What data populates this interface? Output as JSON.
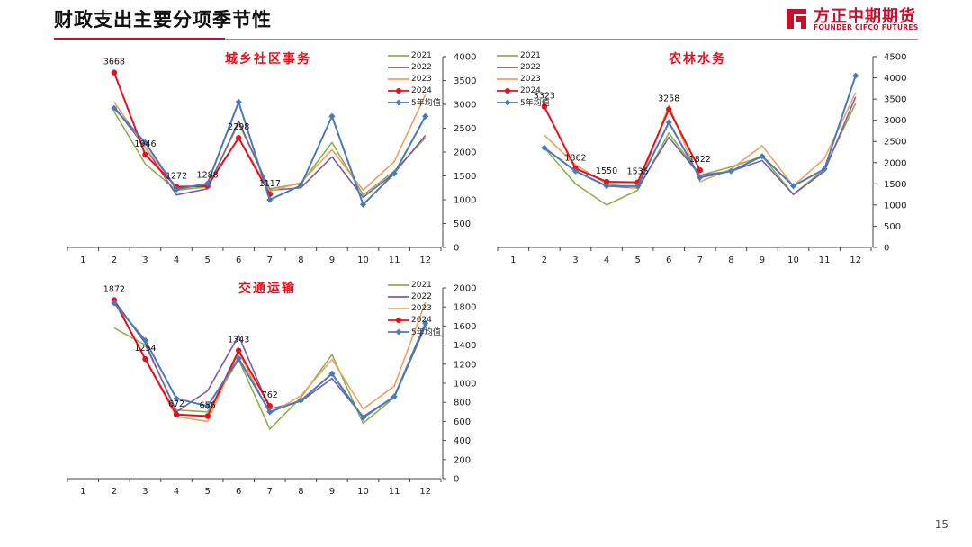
{
  "header": {
    "title": "财政支出主要分项季节性",
    "logo_cn": "方正中期期货",
    "logo_en": "FOUNDER CIFCO FUTURES",
    "accent_color": "#c8102e"
  },
  "footer": {
    "page_number": "15"
  },
  "chart_data": [
    {
      "type": "line",
      "title": "城乡社区事务",
      "categories": [
        "1",
        "2",
        "3",
        "4",
        "5",
        "6",
        "7",
        "8",
        "9",
        "10",
        "11",
        "12"
      ],
      "ylim": [
        0,
        4000
      ],
      "yticks": [
        "0",
        "500",
        "1000",
        "1500",
        "2000",
        "2500",
        "3000",
        "3500",
        "4000"
      ],
      "legend_position": "top-right",
      "series": [
        {
          "name": "2021",
          "color": "#8db04f",
          "values": [
            null,
            2850,
            1750,
            1200,
            1270,
            2600,
            1230,
            1340,
            2200,
            1100,
            1600,
            2300
          ]
        },
        {
          "name": "2022",
          "color": "#7a5ea6",
          "values": [
            null,
            2950,
            2100,
            1100,
            1230,
            2650,
            1200,
            1250,
            1900,
            1050,
            1560,
            2350
          ]
        },
        {
          "name": "2023",
          "color": "#f2a15b",
          "values": [
            null,
            3050,
            2100,
            1250,
            1310,
            2300,
            1180,
            1360,
            2050,
            1200,
            1800,
            3200
          ]
        },
        {
          "name": "2024",
          "color": "#e8101e",
          "values": [
            null,
            3668,
            1946,
            1272,
            1288,
            2298,
            1117,
            null,
            null,
            null,
            null,
            null
          ],
          "labels": [
            "3668",
            "1946",
            "1272",
            "1288",
            "2298",
            "1117"
          ]
        },
        {
          "name": "5年均值",
          "color": "#4a7ab8",
          "values": [
            null,
            2920,
            2200,
            1220,
            1340,
            3050,
            1000,
            1300,
            2750,
            900,
            1550,
            2750
          ]
        }
      ]
    },
    {
      "type": "line",
      "title": "农林水务",
      "categories": [
        "1",
        "2",
        "3",
        "4",
        "5",
        "6",
        "7",
        "8",
        "9",
        "10",
        "11",
        "12"
      ],
      "ylim": [
        0,
        4500
      ],
      "yticks": [
        "0",
        "500",
        "1000",
        "1500",
        "2000",
        "2500",
        "3000",
        "3500",
        "4000",
        "4500"
      ],
      "legend_position": "top-left",
      "series": [
        {
          "name": "2021",
          "color": "#8db04f",
          "values": [
            null,
            2350,
            1500,
            1000,
            1350,
            2700,
            1700,
            1900,
            2150,
            1250,
            1850,
            3400
          ]
        },
        {
          "name": "2022",
          "color": "#7a5ea6",
          "values": [
            null,
            2350,
            1800,
            1450,
            1400,
            2600,
            1700,
            1800,
            2050,
            1250,
            1800,
            3550
          ]
        },
        {
          "name": "2023",
          "color": "#f2a15b",
          "values": [
            null,
            2650,
            1950,
            1500,
            1400,
            3350,
            1550,
            1850,
            2400,
            1450,
            2100,
            3650
          ]
        },
        {
          "name": "2024",
          "color": "#e8101e",
          "values": [
            null,
            3323,
            1862,
            1550,
            1535,
            3258,
            1822,
            null,
            null,
            null,
            null,
            null
          ],
          "labels": [
            "3323",
            "1862",
            "1550",
            "1535",
            "3258",
            "1822"
          ]
        },
        {
          "name": "5年均值",
          "color": "#4a7ab8",
          "values": [
            null,
            2350,
            1800,
            1450,
            1450,
            2950,
            1650,
            1800,
            2150,
            1450,
            1850,
            4050
          ]
        }
      ]
    },
    {
      "type": "line",
      "title": "交通运输",
      "categories": [
        "1",
        "2",
        "3",
        "4",
        "5",
        "6",
        "7",
        "8",
        "9",
        "10",
        "11",
        "12"
      ],
      "ylim": [
        0,
        2000
      ],
      "yticks": [
        "0",
        "200",
        "400",
        "600",
        "800",
        "1000",
        "1200",
        "1400",
        "1600",
        "1800",
        "2000"
      ],
      "legend_position": "top-right",
      "series": [
        {
          "name": "2021",
          "color": "#8db04f",
          "values": [
            null,
            1580,
            1400,
            720,
            700,
            1250,
            520,
            850,
            1300,
            580,
            850,
            1600
          ]
        },
        {
          "name": "2022",
          "color": "#7a5ea6",
          "values": [
            null,
            1870,
            1420,
            700,
            920,
            1500,
            730,
            810,
            1050,
            650,
            860,
            1600
          ]
        },
        {
          "name": "2023",
          "color": "#f2a15b",
          "values": [
            null,
            1860,
            1250,
            650,
            600,
            1330,
            680,
            870,
            1250,
            730,
            970,
            1850
          ]
        },
        {
          "name": "2024",
          "color": "#e8101e",
          "values": [
            null,
            1872,
            1254,
            672,
            656,
            1343,
            762,
            null,
            null,
            null,
            null,
            null
          ],
          "labels": [
            "1872",
            "1254",
            "672",
            "656",
            "1343",
            "762"
          ]
        },
        {
          "name": "5年均值",
          "color": "#4a7ab8",
          "values": [
            null,
            1840,
            1450,
            840,
            760,
            1260,
            700,
            820,
            1100,
            640,
            860,
            1630
          ]
        }
      ]
    }
  ]
}
